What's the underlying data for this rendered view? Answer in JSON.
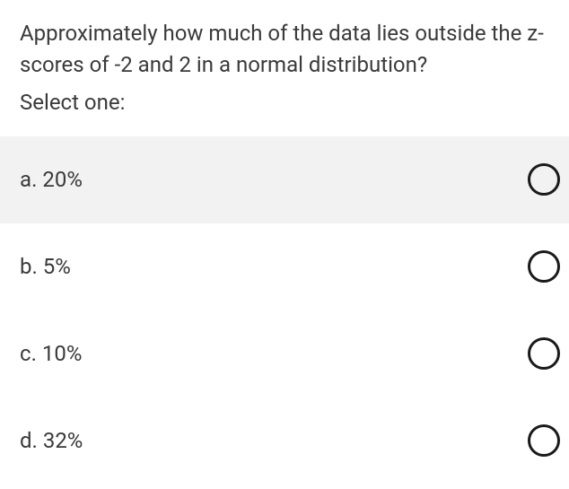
{
  "question": {
    "text": "Approximately how much of the data lies outside the z-scores of -2 and 2 in a normal distribution?",
    "prompt": "Select one:"
  },
  "options": [
    {
      "letter": "a",
      "text": "20%",
      "highlighted": true
    },
    {
      "letter": "b",
      "text": "5%",
      "highlighted": false
    },
    {
      "letter": "c",
      "text": "10%",
      "highlighted": false
    },
    {
      "letter": "d",
      "text": "32%",
      "highlighted": false
    }
  ],
  "colors": {
    "background": "#ffffff",
    "highlight_bg": "#f2f2f2",
    "text": "#3a3a3a",
    "radio_border": "#1a1a1a"
  },
  "typography": {
    "font_family": "Roboto, Arial, sans-serif",
    "question_fontsize": 24,
    "option_fontsize": 24
  }
}
